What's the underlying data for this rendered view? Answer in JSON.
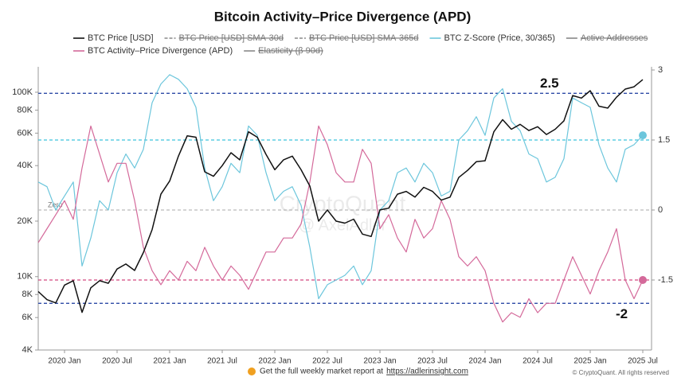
{
  "chart_data": {
    "type": "line",
    "title": "Bitcoin Activity–Price Divergence (APD)",
    "x": [
      "2019-10",
      "2019-11",
      "2019-12",
      "2020-01",
      "2020-02",
      "2020-03",
      "2020-04",
      "2020-05",
      "2020-06",
      "2020-07",
      "2020-08",
      "2020-09",
      "2020-10",
      "2020-11",
      "2020-12",
      "2021-01",
      "2021-02",
      "2021-03",
      "2021-04",
      "2021-05",
      "2021-06",
      "2021-07",
      "2021-08",
      "2021-09",
      "2021-10",
      "2021-11",
      "2021-12",
      "2022-01",
      "2022-02",
      "2022-03",
      "2022-04",
      "2022-05",
      "2022-06",
      "2022-07",
      "2022-08",
      "2022-09",
      "2022-10",
      "2022-11",
      "2022-12",
      "2023-01",
      "2023-02",
      "2023-03",
      "2023-04",
      "2023-05",
      "2023-06",
      "2023-07",
      "2023-08",
      "2023-09",
      "2023-10",
      "2023-11",
      "2023-12",
      "2024-01",
      "2024-02",
      "2024-03",
      "2024-04",
      "2024-05",
      "2024-06",
      "2024-07",
      "2024-08",
      "2024-09",
      "2024-10",
      "2024-11",
      "2024-12",
      "2025-01",
      "2025-02",
      "2025-03",
      "2025-04",
      "2025-05",
      "2025-06",
      "2025-07"
    ],
    "series": [
      {
        "name": "BTC Price [USD]",
        "color": "#111111",
        "axis": "y",
        "values": [
          8300,
          7500,
          7200,
          9000,
          9500,
          6400,
          8700,
          9500,
          9200,
          11000,
          11700,
          10800,
          13500,
          18000,
          28000,
          33000,
          45000,
          58000,
          57000,
          37000,
          35000,
          40000,
          47000,
          43000,
          61000,
          57000,
          46000,
          38000,
          43000,
          45000,
          38000,
          31000,
          20000,
          23000,
          20000,
          19500,
          20500,
          17000,
          16500,
          23000,
          23500,
          28000,
          29000,
          27000,
          30500,
          29000,
          26000,
          27000,
          34500,
          37700,
          42000,
          42500,
          61000,
          71000,
          63000,
          67000,
          62000,
          65000,
          59000,
          63000,
          70000,
          96000,
          93000,
          102000,
          84000,
          82000,
          94000,
          104000,
          107000,
          117000
        ]
      },
      {
        "name": "BTC Z-Score (Price, 30/365)",
        "color": "#6cc6dc",
        "axis": "y2",
        "values": [
          0.6,
          0.5,
          0,
          0.3,
          0.6,
          -1.2,
          -0.6,
          0.2,
          0,
          0.8,
          1.2,
          0.9,
          1.3,
          2.3,
          2.7,
          2.9,
          2.8,
          2.6,
          2.2,
          0.9,
          0.2,
          0.5,
          1,
          0.8,
          1.8,
          1.6,
          0.8,
          0.2,
          0.4,
          0.5,
          0.1,
          -0.8,
          -1.9,
          -1.6,
          -1.5,
          -1.4,
          -1.2,
          -1.6,
          -1.3,
          0,
          0.2,
          0.8,
          0.9,
          0.6,
          1,
          0.8,
          0.3,
          0.4,
          1.5,
          1.7,
          2,
          1.6,
          2.4,
          2.6,
          1.9,
          1.7,
          1.2,
          1.1,
          0.6,
          0.7,
          1.1,
          2.4,
          2.3,
          2.2,
          1.4,
          0.9,
          0.6,
          1.3,
          1.4,
          1.6
        ]
      },
      {
        "name": "BTC Activity–Price Divergence (APD)",
        "color": "#d4699a",
        "axis": "y2",
        "values": [
          -0.7,
          -0.4,
          -0.1,
          0.2,
          -0.2,
          0.9,
          1.8,
          1.2,
          0.6,
          1,
          1,
          0.2,
          -0.8,
          -1.3,
          -1.6,
          -1.3,
          -1.5,
          -1.1,
          -1.3,
          -0.8,
          -1.2,
          -1.5,
          -1.2,
          -1.4,
          -1.7,
          -1.3,
          -0.9,
          -0.9,
          -0.6,
          -0.6,
          -0.3,
          0.6,
          1.8,
          1.4,
          0.8,
          0.6,
          0.6,
          1.3,
          1,
          -0.4,
          -0.1,
          -0.6,
          -0.9,
          -0.2,
          -0.6,
          -0.4,
          0.2,
          -0.2,
          -1,
          -1.2,
          -1,
          -1.3,
          -2,
          -2.4,
          -2.2,
          -2.3,
          -1.9,
          -2.2,
          -2,
          -2,
          -1.5,
          -1,
          -1.4,
          -1.8,
          -1.3,
          -0.9,
          -0.4,
          -1.5,
          -1.9,
          -1.5
        ]
      }
    ],
    "disabled_series": [
      {
        "name": "BTC Price [USD] SMA-30d",
        "color": "#888888",
        "dash": true
      },
      {
        "name": "BTC Price [USD] SMA-365d",
        "color": "#888888",
        "dash": true
      },
      {
        "name": "Active Addresses",
        "color": "#888888",
        "dash": false
      },
      {
        "name": "Elasticity (β 90d)",
        "color": "#888888",
        "dash": false
      }
    ],
    "xlim": [
      "2019-10",
      "2025-08"
    ],
    "xticks": [
      {
        "value": "2020-01",
        "label": "2020 Jan"
      },
      {
        "value": "2020-07",
        "label": "2020 Jul"
      },
      {
        "value": "2021-01",
        "label": "2021 Jan"
      },
      {
        "value": "2021-07",
        "label": "2021 Jul"
      },
      {
        "value": "2022-01",
        "label": "2022 Jan"
      },
      {
        "value": "2022-07",
        "label": "2022 Jul"
      },
      {
        "value": "2023-01",
        "label": "2023 Jan"
      },
      {
        "value": "2023-07",
        "label": "2023 Jul"
      },
      {
        "value": "2024-01",
        "label": "2024 Jan"
      },
      {
        "value": "2024-07",
        "label": "2024 Jul"
      },
      {
        "value": "2025-01",
        "label": "2025 Jan"
      },
      {
        "value": "2025-07",
        "label": "2025 Jul"
      }
    ],
    "ylim": [
      4000,
      132000
    ],
    "log_y": true,
    "yticks": [
      {
        "value": 4000,
        "label": "4K"
      },
      {
        "value": 6000,
        "label": "6K"
      },
      {
        "value": 8000,
        "label": "8K"
      },
      {
        "value": 10000,
        "label": "10K"
      },
      {
        "value": 20000,
        "label": "20K"
      },
      {
        "value": 40000,
        "label": "40K"
      },
      {
        "value": 60000,
        "label": "60K"
      },
      {
        "value": 80000,
        "label": "80K"
      },
      {
        "value": 100000,
        "label": "100K"
      }
    ],
    "y2lim": [
      -3,
      3
    ],
    "y2ticks": [
      3,
      1.5,
      0,
      -1.5
    ],
    "reference_lines": [
      {
        "value": 2.5,
        "label": "2.5",
        "color": "#2d4aa6"
      },
      {
        "value": 1.5,
        "color": "#3cc4dc"
      },
      {
        "value": 0,
        "label": "Zero",
        "color": "#bbbbbb"
      },
      {
        "value": -1.5,
        "color": "#d4487f"
      },
      {
        "value": -2,
        "label": "-2",
        "color": "#2d4aa6"
      }
    ],
    "end_markers": true,
    "watermark": [
      "CryptoQuant",
      "@ AxelAdler"
    ],
    "footer_text": "Get the full weekly market report at",
    "footer_link": "https://adlerinsight.com",
    "copyright": "© CryptoQuant. All rights reserved"
  }
}
